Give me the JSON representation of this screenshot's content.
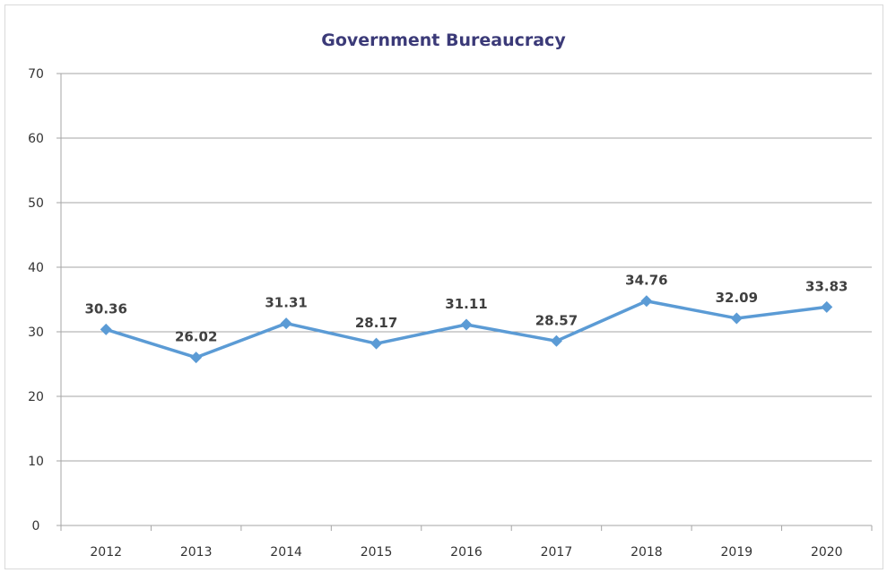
{
  "chart_data": {
    "type": "line",
    "title": "Government Bureaucracy",
    "xlabel": "",
    "ylabel": "",
    "categories": [
      "2012",
      "2013",
      "2014",
      "2015",
      "2016",
      "2017",
      "2018",
      "2019",
      "2020"
    ],
    "series": [
      {
        "values": [
          30.36,
          26.02,
          31.31,
          28.17,
          31.11,
          28.57,
          34.76,
          32.09,
          33.83
        ],
        "labels": [
          "30.36",
          "26.02",
          "31.31",
          "28.17",
          "31.11",
          "28.57",
          "34.76",
          "32.09",
          "33.83"
        ],
        "color": "#5b9bd5",
        "marker": "diamond"
      }
    ],
    "ylim": [
      0,
      70
    ],
    "yticks": [
      "0",
      "10",
      "20",
      "30",
      "40",
      "50",
      "60",
      "70"
    ],
    "grid": true,
    "legend": "none",
    "colors": {
      "title": "#3b3a78",
      "gridline": "#a6a6a6",
      "line": "#5b9bd5"
    }
  }
}
